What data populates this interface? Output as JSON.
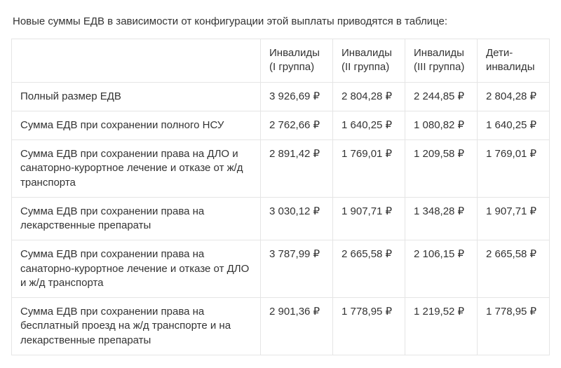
{
  "intro": "Новые суммы ЕДВ в зависимости от конфигурации этой выплаты приводятся в таблице:",
  "currency_symbol": "₽",
  "table": {
    "columns": [
      "Инвалиды (I группа)",
      "Инвалиды (II группа)",
      "Инвалиды (III группа)",
      "Дети-инвалиды"
    ],
    "rows": [
      {
        "label": "Полный размер ЕДВ",
        "values": [
          "3 926,69 ₽",
          "2 804,28 ₽",
          "2 244,85 ₽",
          "2 804,28 ₽"
        ]
      },
      {
        "label": "Сумма ЕДВ при сохранении полного НСУ",
        "values": [
          "2 762,66 ₽",
          "1 640,25 ₽",
          "1 080,82 ₽",
          "1 640,25 ₽"
        ]
      },
      {
        "label": "Сумма ЕДВ при сохранении права на ДЛО и санаторно-курортное лечение и отказе от ж/д транспорта",
        "values": [
          "2 891,42 ₽",
          "1 769,01 ₽",
          "1 209,58 ₽",
          "1 769,01 ₽"
        ]
      },
      {
        "label": "Сумма ЕДВ при сохранении права на лекарственные препараты",
        "values": [
          "3 030,12 ₽",
          "1 907,71 ₽",
          "1 348,28 ₽",
          "1 907,71 ₽"
        ]
      },
      {
        "label": "Сумма ЕДВ при сохранении права на санаторно-курортное лечение и отказе от ДЛО и ж/д транспорта",
        "values": [
          "3 787,99 ₽",
          "2 665,58 ₽",
          "2 106,15 ₽",
          "2 665,58 ₽"
        ]
      },
      {
        "label": "Сумма ЕДВ при сохранении права на бесплатный проезд на ж/д транспорте и на лекарственные препараты",
        "values": [
          "2 901,36 ₽",
          "1 778,95 ₽",
          "1 219,52 ₽",
          "1 778,95 ₽"
        ]
      }
    ]
  },
  "style": {
    "background_color": "#ffffff",
    "text_color": "#333333",
    "border_color": "#e5e5e5",
    "font_family": "Segoe UI, Helvetica Neue, Arial, sans-serif",
    "font_size_pt": 11,
    "header_font_weight": 400
  }
}
